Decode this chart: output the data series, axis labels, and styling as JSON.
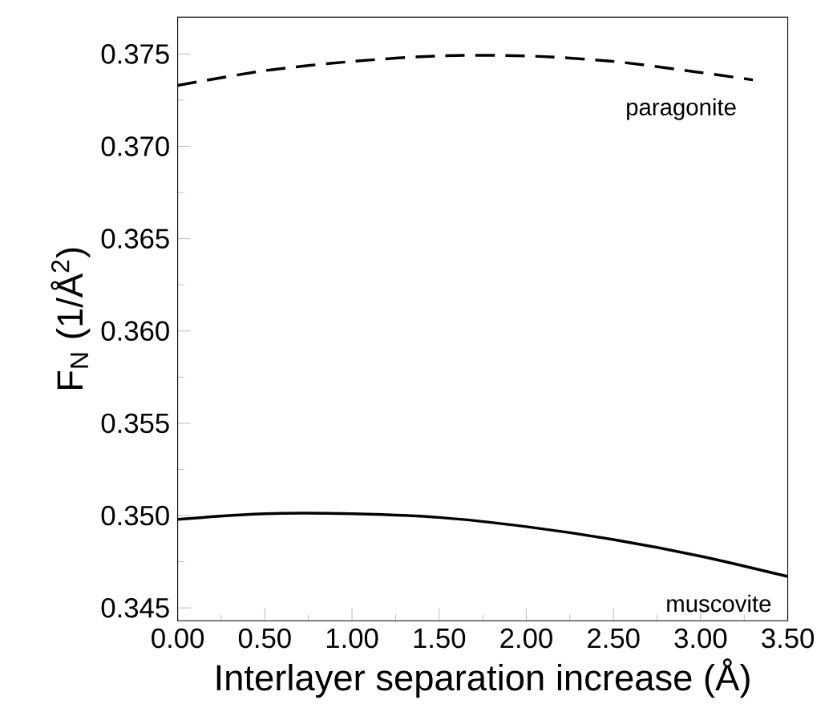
{
  "chart_data": {
    "type": "line",
    "xlabel": "Interlayer separation increase (Å)",
    "ylabel": "F$_{N}$ (1/Å$^{2}$)",
    "xlim": [
      0,
      3.5
    ],
    "ylim": [
      0.3443,
      0.377
    ],
    "xticks": [
      {
        "value": 0,
        "label": "0.00"
      },
      {
        "value": 0.5,
        "label": "0.50"
      },
      {
        "value": 1,
        "label": "1.00"
      },
      {
        "value": 1.5,
        "label": "1.50"
      },
      {
        "value": 2,
        "label": "2.00"
      },
      {
        "value": 2.5,
        "label": "2.50"
      },
      {
        "value": 3,
        "label": "3.00"
      },
      {
        "value": 3.5,
        "label": "3.50"
      }
    ],
    "yticks": [
      0.345,
      {
        "value": 0.35,
        "label": "0.350"
      },
      0.355,
      {
        "value": 0.36,
        "label": "0.360"
      },
      0.365,
      {
        "value": 0.37,
        "label": "0.370"
      },
      0.375
    ],
    "marker": "none",
    "series": [
      {
        "name": "paragonite",
        "color": "#000000",
        "line_style": "dashed",
        "x": [
          0,
          0.5,
          1,
          1.5,
          2,
          2.5,
          3,
          3.3
        ],
        "values": [
          0.3733,
          0.3741,
          0.3746,
          0.3749,
          0.3749,
          0.3746,
          0.374,
          0.3736
        ]
      },
      {
        "name": "muscovite",
        "color": "#000000",
        "line_style": "solid",
        "x": [
          0,
          0.5,
          1,
          1.5,
          2,
          2.5,
          3,
          3.5
        ],
        "values": [
          0.3498,
          0.3501,
          0.3501,
          0.3499,
          0.3494,
          0.3487,
          0.3478,
          0.3467
        ]
      }
    ]
  }
}
